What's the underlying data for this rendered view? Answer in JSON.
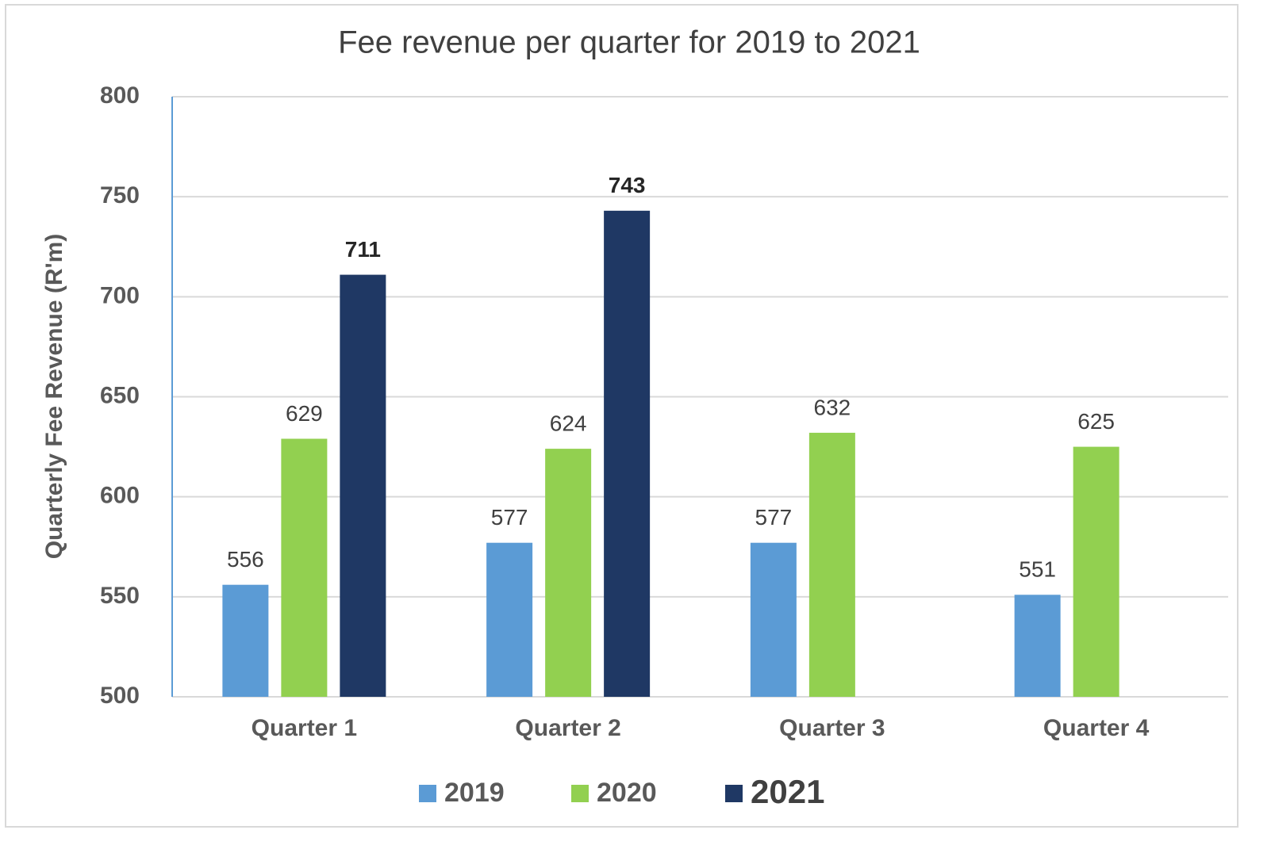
{
  "chart_data": {
    "type": "bar",
    "title": "Fee revenue per quarter for 2019 to 2021",
    "y_label": "Quarterly Fee Revenue (R'm)",
    "categories": [
      "Quarter 1",
      "Quarter 2",
      "Quarter 3",
      "Quarter 4"
    ],
    "series": [
      {
        "name": "2019",
        "color": "#5b9bd5",
        "values": [
          556,
          577,
          577,
          551
        ]
      },
      {
        "name": "2020",
        "color": "#92d050",
        "values": [
          629,
          624,
          632,
          625
        ]
      },
      {
        "name": "2021",
        "color": "#1f3864",
        "values": [
          711,
          743,
          null,
          null
        ]
      }
    ],
    "ylim": [
      500,
      800
    ],
    "yticks": [
      500,
      550,
      600,
      650,
      700,
      750,
      800
    ],
    "grid": true,
    "legend": "bottom"
  }
}
